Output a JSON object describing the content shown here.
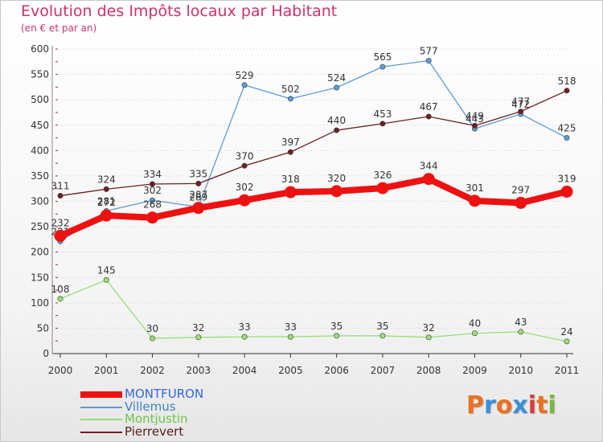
{
  "header": {
    "title": "Evolution des Impôts locaux par Habitant",
    "subtitle": "(en € et par an)"
  },
  "colors": {
    "title": "#d0306b",
    "axis": "#333333",
    "grid": "#cccccc",
    "logo": [
      "#e8711f",
      "#3a8fd6",
      "#e8711f",
      "#3a8fd6",
      "#d63f3f",
      "#e8711f",
      "#79b83a"
    ]
  },
  "logo": {
    "text": "Proxiti"
  },
  "chart_data": {
    "type": "line",
    "title": "Evolution des Impôts locaux par Habitant",
    "subtitle": "(en € et par an)",
    "xlabel": "",
    "ylabel": "",
    "x": [
      "2000",
      "2001",
      "2002",
      "2003",
      "2004",
      "2005",
      "2006",
      "2007",
      "2008",
      "2009",
      "2010",
      "2011"
    ],
    "ylim": [
      0,
      600
    ],
    "yticks": [
      0,
      50,
      100,
      150,
      200,
      250,
      300,
      350,
      400,
      450,
      500,
      550,
      600
    ],
    "grid": true,
    "legend": "bottom-left",
    "series": [
      {
        "name": "MONTFURON",
        "color": "#ee1111",
        "emphasis": true,
        "values": [
          232,
          272,
          268,
          287,
          302,
          318,
          320,
          326,
          344,
          301,
          297,
          319
        ]
      },
      {
        "name": "Villemus",
        "color": "#5b9bd5",
        "emphasis": false,
        "values": [
          221,
          281,
          302,
          289,
          529,
          502,
          524,
          565,
          577,
          443,
          472,
          425
        ]
      },
      {
        "name": "Montjustin",
        "color": "#99dd77",
        "emphasis": false,
        "values": [
          108,
          145,
          30,
          32,
          33,
          33,
          35,
          35,
          32,
          40,
          43,
          24
        ]
      },
      {
        "name": "Pierrevert",
        "color": "#6b1f22",
        "emphasis": false,
        "values": [
          311,
          324,
          334,
          335,
          370,
          397,
          440,
          453,
          467,
          449,
          477,
          518
        ]
      }
    ]
  }
}
